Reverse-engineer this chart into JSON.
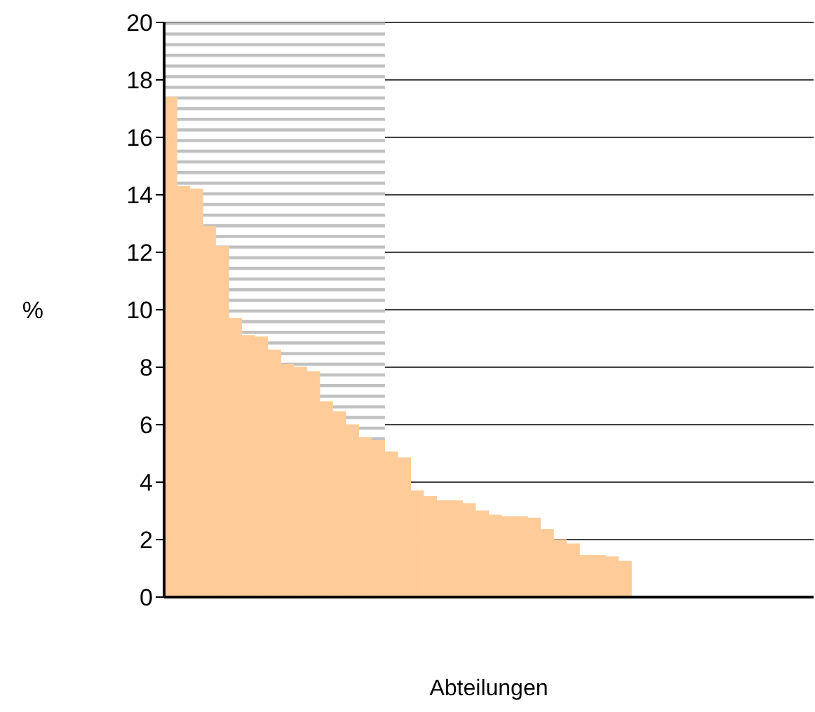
{
  "chart_data": {
    "type": "bar",
    "xlabel": "Abteilungen",
    "ylabel": "%",
    "categories": [
      null,
      null,
      null,
      null,
      null,
      null,
      null,
      null,
      null,
      null,
      null,
      null,
      null,
      null,
      null,
      null,
      null,
      null,
      null,
      null,
      null,
      null,
      null,
      null,
      null,
      null,
      null,
      null,
      null,
      null,
      null,
      null,
      null,
      null,
      null,
      null,
      null,
      null,
      null,
      null,
      null,
      null,
      null,
      null,
      null,
      null,
      null,
      null,
      null,
      null
    ],
    "values": [
      17.4,
      14.3,
      14.2,
      12.9,
      12.2,
      9.7,
      9.1,
      9.05,
      8.6,
      8.1,
      8.0,
      7.85,
      6.8,
      6.45,
      6.0,
      5.55,
      5.45,
      5.05,
      4.85,
      3.7,
      3.5,
      3.35,
      3.35,
      3.25,
      3.0,
      2.85,
      2.8,
      2.8,
      2.75,
      2.35,
      2.0,
      1.85,
      1.45,
      1.45,
      1.4,
      1.25,
      null,
      null,
      null,
      null,
      null,
      null,
      null,
      null,
      null,
      null,
      null,
      null,
      null,
      null
    ],
    "color": "#ffcc99",
    "ylim": [
      0,
      20
    ],
    "yticks": [
      0,
      2,
      4,
      6,
      8,
      10,
      12,
      14,
      16,
      18,
      20
    ],
    "grid": "y",
    "tick_labels": "y"
  }
}
